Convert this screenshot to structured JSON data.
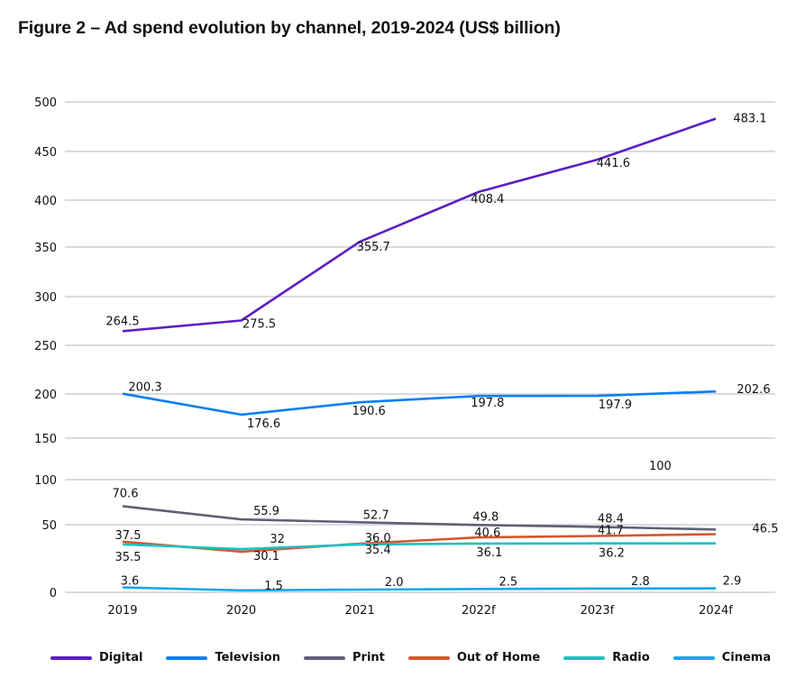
{
  "chart_data": {
    "type": "line",
    "title": "Figure 2 – Ad spend evolution by channel, 2019-2024 (US$ billion)",
    "xlabel": "",
    "ylabel": "",
    "categories": [
      "2019",
      "2020",
      "2021",
      "2022f",
      "2023f",
      "2024f"
    ],
    "yticks": [
      "500",
      "450",
      "400",
      "350",
      "300",
      "250",
      "200",
      "150",
      "100",
      "50",
      "0"
    ],
    "ylim": [
      0,
      500
    ],
    "grid": true,
    "legend_position": "bottom",
    "series": [
      {
        "name": "Digital",
        "color": "#5b1fc4",
        "values": [
          264.5,
          275.5,
          355.7,
          408.4,
          441.6,
          483.1
        ],
        "labels": [
          "264.5",
          "275.5",
          "355.7",
          "408.4",
          "441.6",
          "483.1"
        ]
      },
      {
        "name": "Television",
        "color": "#0a7ff0",
        "values": [
          200.3,
          176.6,
          190.6,
          197.8,
          197.9,
          202.6
        ],
        "labels": [
          "200.3",
          "176.6",
          "190.6",
          "197.8",
          "197.9",
          "202.6"
        ]
      },
      {
        "name": "Print",
        "color": "#5f5f78",
        "values": [
          70.6,
          55.9,
          52.7,
          49.8,
          48.4,
          46.5
        ],
        "labels": [
          "70.6",
          "55.9",
          "52.7",
          "49.8",
          "48.4",
          "46.5"
        ]
      },
      {
        "name": "Out of Home",
        "color": "#d4572a",
        "values": [
          37.5,
          30.1,
          36.0,
          40.6,
          41.7,
          43.0
        ],
        "labels": [
          "37.5",
          "30.1",
          "36.0",
          "40.6",
          "41.7",
          ""
        ]
      },
      {
        "name": "Radio",
        "color": "#10c4c4",
        "values": [
          35.5,
          32,
          35.4,
          36.1,
          36.2,
          36.2
        ],
        "labels": [
          "35.5",
          "32",
          "35.4",
          "36.1",
          "36.2",
          ""
        ]
      },
      {
        "name": "Cinema",
        "color": "#12a8e8",
        "values": [
          3.6,
          1.5,
          2.0,
          2.5,
          2.8,
          2.9
        ],
        "labels": [
          "3.6",
          "1.5",
          "2.0",
          "2.5",
          "2.8",
          "2.9"
        ]
      }
    ],
    "annotations": [
      "100"
    ]
  }
}
